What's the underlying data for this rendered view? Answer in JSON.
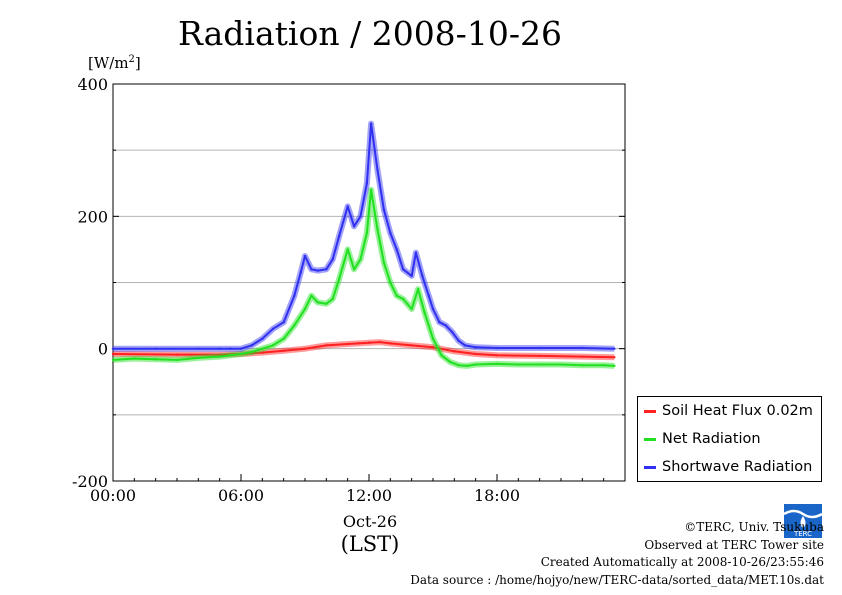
{
  "chart_data": {
    "type": "line",
    "title": "Radiation / 2008-10-26",
    "ylabel": "[W/m2]",
    "xlabel": "(LST)",
    "date_label": "Oct-26",
    "ylim": [
      -200,
      400
    ],
    "xlim": [
      0,
      24
    ],
    "yticks": [
      -200,
      0,
      200,
      400
    ],
    "ytick_labels": [
      "-200",
      "0",
      "200",
      "400"
    ],
    "xticks": [
      0,
      6,
      12,
      18
    ],
    "xtick_labels": [
      "00:00",
      "06:00",
      "12:00",
      "18:00"
    ],
    "grid": true,
    "legend_position": "bottom-right",
    "series": [
      {
        "name": "Soil Heat Flux 0.02m",
        "color": "#ff2020",
        "x": [
          0,
          3,
          5,
          6,
          7,
          8,
          9,
          10,
          11,
          11.5,
          12,
          12.5,
          13,
          14,
          15,
          16,
          17,
          18,
          20,
          22,
          23.5
        ],
        "values": [
          -8,
          -9,
          -9,
          -8,
          -6,
          -3,
          0,
          5,
          7,
          8,
          9,
          10,
          8,
          5,
          2,
          -4,
          -8,
          -10,
          -11,
          -12,
          -13
        ]
      },
      {
        "name": "Net Radiation",
        "color": "#20e020",
        "x": [
          0,
          1,
          2,
          3,
          4,
          5,
          5.5,
          6,
          6.5,
          7,
          7.5,
          8,
          8.5,
          9,
          9.3,
          9.6,
          10,
          10.3,
          10.6,
          11,
          11.3,
          11.6,
          11.9,
          12.1,
          12.4,
          12.7,
          13,
          13.3,
          13.6,
          14,
          14.3,
          14.6,
          15,
          15.4,
          15.8,
          16.2,
          16.6,
          17,
          18,
          19,
          20,
          21,
          22,
          23,
          23.5
        ],
        "values": [
          -17,
          -15,
          -16,
          -17,
          -14,
          -12,
          -10,
          -8,
          -5,
          0,
          5,
          15,
          35,
          60,
          80,
          70,
          68,
          75,
          105,
          150,
          120,
          135,
          175,
          240,
          180,
          130,
          100,
          80,
          75,
          60,
          90,
          55,
          15,
          -10,
          -20,
          -25,
          -26,
          -24,
          -23,
          -24,
          -24,
          -24,
          -25,
          -25,
          -26
        ]
      },
      {
        "name": "Shortwave Radiation",
        "color": "#3030f0",
        "x": [
          0,
          2,
          4,
          5,
          5.5,
          6,
          6.5,
          7,
          7.5,
          8,
          8.5,
          8.8,
          9,
          9.3,
          9.6,
          10,
          10.3,
          10.6,
          11,
          11.3,
          11.6,
          11.9,
          12.1,
          12.4,
          12.7,
          13,
          13.3,
          13.6,
          14,
          14.2,
          14.5,
          14.8,
          15,
          15.3,
          15.6,
          15.9,
          16.2,
          16.5,
          17,
          18,
          20,
          22,
          23.5
        ],
        "values": [
          0,
          0,
          0,
          0,
          0,
          0,
          5,
          15,
          30,
          40,
          80,
          115,
          140,
          120,
          118,
          120,
          135,
          170,
          215,
          185,
          200,
          250,
          340,
          270,
          210,
          175,
          150,
          120,
          110,
          145,
          110,
          80,
          60,
          40,
          35,
          25,
          12,
          5,
          2,
          1,
          1,
          1,
          0
        ]
      }
    ]
  },
  "credits": {
    "copyright": "©TERC, Univ. Tsukuba",
    "observed": "Observed at TERC Tower site",
    "created": "Created Automatically at 2008-10-26/23:55:46",
    "source": "Data source : /home/hojyo/new/TERC-data/sorted_data/MET.10s.dat"
  },
  "logo": {
    "text": "TERC",
    "color": "#1a66c8"
  }
}
